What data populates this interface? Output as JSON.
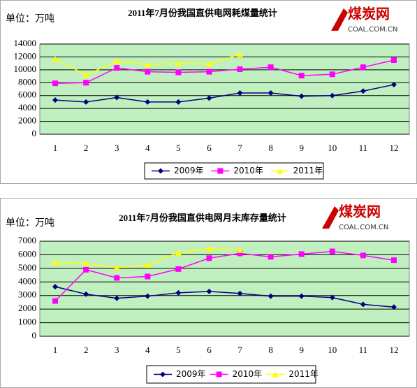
{
  "chart_data": [
    {
      "type": "line",
      "title": "2011年7月份我国直供电网耗煤量统计",
      "unit": "单位：万吨",
      "logo": {
        "name": "煤炭网",
        "domain": "COAL.COM.CN"
      },
      "categories": [
        1,
        2,
        3,
        4,
        5,
        6,
        7,
        8,
        9,
        10,
        11,
        12
      ],
      "ylim": [
        0,
        14000
      ],
      "yticks": [
        0,
        2000,
        4000,
        6000,
        8000,
        10000,
        12000,
        14000
      ],
      "grid": true,
      "series": [
        {
          "name": "2009年",
          "color": "#000080",
          "marker": "diamond",
          "values": [
            5300,
            5000,
            5700,
            5000,
            5000,
            5600,
            6400,
            6400,
            5900,
            6000,
            6700,
            7700
          ]
        },
        {
          "name": "2010年",
          "color": "#ff00ff",
          "marker": "square",
          "values": [
            7900,
            8000,
            10300,
            9700,
            9600,
            9700,
            10100,
            10400,
            9100,
            9300,
            10400,
            11500
          ]
        },
        {
          "name": "2011年",
          "color": "#ffff00",
          "marker": "triangle",
          "values": [
            11700,
            9200,
            11300,
            10800,
            11000,
            10900,
            12400,
            null,
            null,
            null,
            null,
            null
          ]
        }
      ]
    },
    {
      "type": "line",
      "title": "2011年7月份我国直供电网月末库存量统计",
      "unit": "单位：万吨",
      "logo": {
        "name": "煤炭网",
        "domain": "COAL.COM.CN"
      },
      "categories": [
        1,
        2,
        3,
        4,
        5,
        6,
        7,
        8,
        9,
        10,
        11,
        12
      ],
      "ylim": [
        0,
        7000
      ],
      "yticks": [
        0,
        1000,
        2000,
        3000,
        4000,
        5000,
        6000,
        7000
      ],
      "grid": true,
      "series": [
        {
          "name": "2009年",
          "color": "#000080",
          "marker": "diamond",
          "values": [
            3650,
            3100,
            2800,
            2950,
            3200,
            3300,
            3150,
            2950,
            2950,
            2850,
            2350,
            2150
          ]
        },
        {
          "name": "2010年",
          "color": "#ff00ff",
          "marker": "square",
          "values": [
            2600,
            4900,
            4300,
            4400,
            4950,
            5750,
            6100,
            5850,
            6050,
            6250,
            5950,
            5600
          ]
        },
        {
          "name": "2011年",
          "color": "#ffff00",
          "marker": "triangle",
          "values": [
            5450,
            5350,
            5050,
            5250,
            6150,
            6450,
            6350,
            null,
            null,
            null,
            null,
            null
          ]
        }
      ]
    }
  ]
}
